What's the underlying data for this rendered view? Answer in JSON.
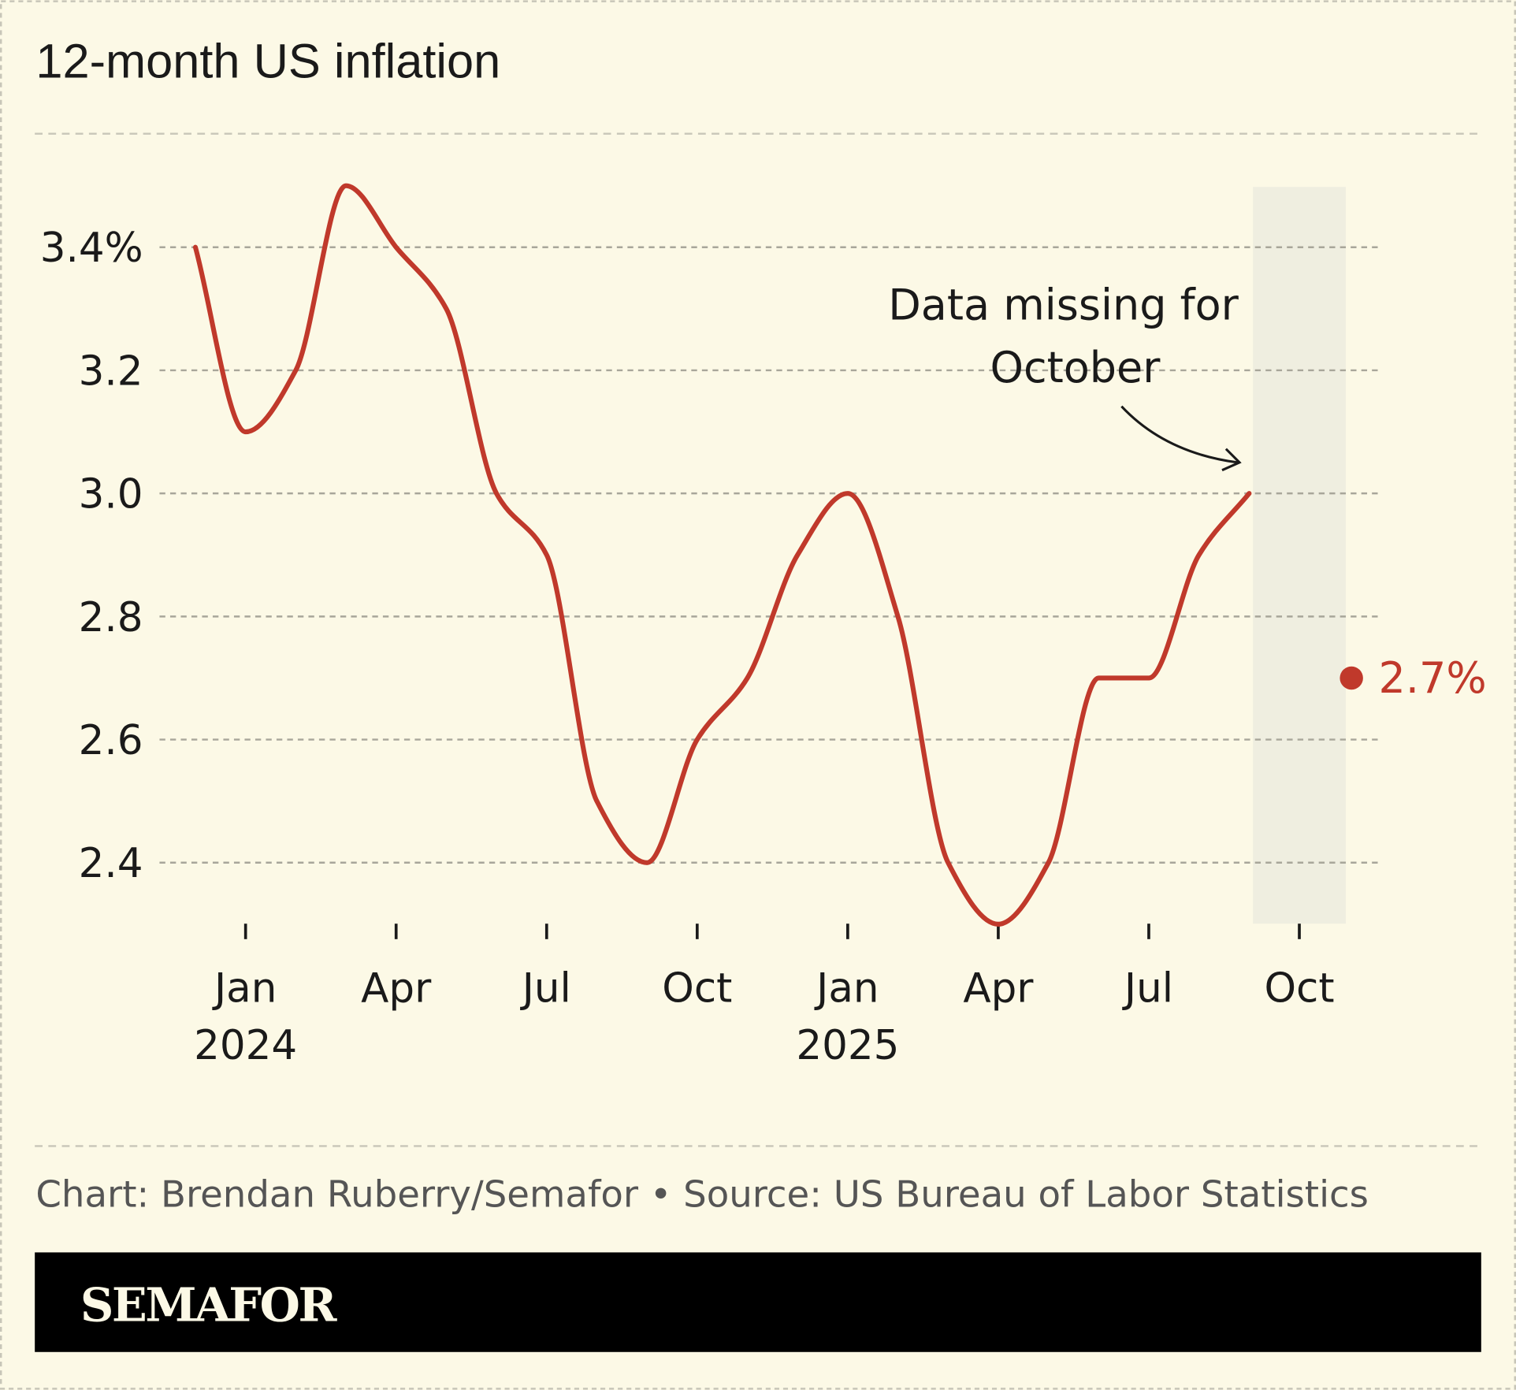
{
  "title": "12-month US inflation",
  "annotation": {
    "line1": "Data missing for",
    "line2": "October"
  },
  "footer": {
    "credit": "Chart: Brendan Ruberry/Semafor • Source: US Bureau of Labor Statistics"
  },
  "brand": {
    "logo": "SEMAFOR"
  },
  "colors": {
    "background": "#fcf9e6",
    "line": "#c0392b",
    "missing_band": "#efeee0",
    "footer_bar": "#000000",
    "logo": "#fcf9e6"
  },
  "chart_data": {
    "type": "line",
    "title": "12-month US inflation",
    "y_unit": "%",
    "ylim": [
      2.3,
      3.5
    ],
    "grid": true,
    "y_ticks": [
      {
        "value": 3.4,
        "label": "3.4%"
      },
      {
        "value": 3.2,
        "label": "3.2"
      },
      {
        "value": 3.0,
        "label": "3.0"
      },
      {
        "value": 2.8,
        "label": "2.8"
      },
      {
        "value": 2.6,
        "label": "2.6"
      },
      {
        "value": 2.4,
        "label": "2.4"
      }
    ],
    "x_ticks": [
      {
        "date": "2024-01",
        "label": "Jan",
        "year": "2024"
      },
      {
        "date": "2024-04",
        "label": "Apr"
      },
      {
        "date": "2024-07",
        "label": "Jul"
      },
      {
        "date": "2024-10",
        "label": "Oct"
      },
      {
        "date": "2025-01",
        "label": "Jan",
        "year": "2025"
      },
      {
        "date": "2025-04",
        "label": "Apr"
      },
      {
        "date": "2025-07",
        "label": "Jul"
      },
      {
        "date": "2025-10",
        "label": "Oct"
      }
    ],
    "series": [
      {
        "points": [
          [
            "2023-12",
            3.4
          ],
          [
            "2024-01",
            3.1
          ],
          [
            "2024-02",
            3.2
          ],
          [
            "2024-03",
            3.5
          ],
          [
            "2024-04",
            3.4
          ],
          [
            "2024-05",
            3.3
          ],
          [
            "2024-06",
            3.0
          ],
          [
            "2024-07",
            2.9
          ],
          [
            "2024-08",
            2.5
          ],
          [
            "2024-09",
            2.4
          ],
          [
            "2024-10",
            2.6
          ],
          [
            "2024-11",
            2.7
          ],
          [
            "2024-12",
            2.9
          ],
          [
            "2025-01",
            3.0
          ],
          [
            "2025-02",
            2.8
          ],
          [
            "2025-03",
            2.4
          ],
          [
            "2025-04",
            2.3
          ],
          [
            "2025-05",
            2.4
          ],
          [
            "2025-06",
            2.7
          ],
          [
            "2025-07",
            2.7
          ],
          [
            "2025-08",
            2.9
          ],
          [
            "2025-09",
            3.0
          ]
        ]
      }
    ],
    "missing_period": "2025-10",
    "latest_point": {
      "date": "2025-11",
      "value": 2.7,
      "label": "2.7%"
    }
  }
}
